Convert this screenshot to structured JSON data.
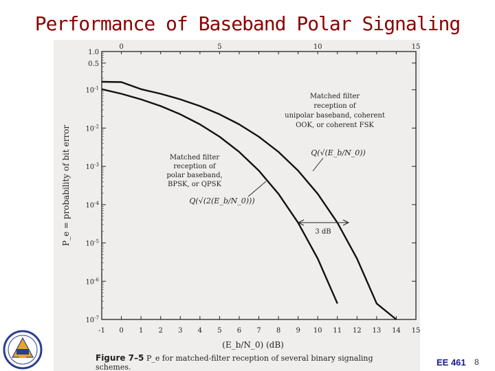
{
  "slide": {
    "title": "Performance of Baseband Polar Signaling",
    "course": "EE 461",
    "page": "8"
  },
  "chart_data": {
    "type": "line",
    "xlabel": "(E_b/N_0) (dB)",
    "ylabel": "P_e = probability of bit error",
    "xlim": [
      -1,
      15
    ],
    "ylog": true,
    "ylim": [
      1e-07,
      1.0
    ],
    "x_ticks": [
      -1,
      0,
      1,
      2,
      3,
      4,
      5,
      6,
      7,
      8,
      9,
      10,
      11,
      12,
      13,
      14,
      15
    ],
    "x_tick_labels": [
      "-1",
      "0",
      "1",
      "2",
      "3",
      "4",
      "5",
      "6",
      "7",
      "8",
      "9",
      "10",
      "11",
      "12",
      "13",
      "14",
      "15"
    ],
    "top_ticks": [
      0,
      5,
      10,
      15
    ],
    "top_tick_labels": [
      "0",
      "5",
      "10",
      "15"
    ],
    "y_ticks": [
      1.0,
      0.5,
      0.1,
      0.01,
      0.001,
      0.0001,
      1e-05,
      1e-06,
      1e-07
    ],
    "y_tick_labels": [
      "1.0",
      "0.5",
      "10-1",
      "10-2",
      "10-3",
      "10-4",
      "10-5",
      "10-6",
      "10-7"
    ],
    "grid": false,
    "series": [
      {
        "name": "polar",
        "x": [
          -1,
          0,
          1,
          2,
          3,
          4,
          5,
          6,
          7,
          8,
          9,
          10,
          11
        ],
        "y": [
          0.104,
          0.0786,
          0.0563,
          0.0375,
          0.0229,
          0.0125,
          0.00595,
          0.00239,
          0.000773,
          0.000191,
          3.36e-05,
          3.87e-06,
          2.61e-07
        ]
      },
      {
        "name": "unipolar",
        "x": [
          -1,
          0,
          1,
          2,
          3,
          4,
          5,
          6,
          7,
          8,
          9,
          10,
          11,
          12,
          13,
          14
        ],
        "y": [
          0.1623,
          0.1587,
          0.104,
          0.0786,
          0.0563,
          0.0375,
          0.0229,
          0.0125,
          0.00595,
          0.00239,
          0.000773,
          0.000191,
          3.36e-05,
          3.87e-06,
          2.61e-07,
          1.14e-08
        ]
      }
    ],
    "annotations": {
      "unipolar_note": [
        "Matched filter",
        "reception of",
        "unipolar baseband, coherent",
        "OOK, or coherent FSK"
      ],
      "unipolar_formula": "Q(√(E_b/N_0))",
      "polar_note": [
        "Matched filter",
        "reception of",
        "polar baseband,",
        "BPSK, or QPSK"
      ],
      "polar_formula": "Q(√(2(E_b/N_0)))",
      "gap": "3 dB"
    },
    "caption_label": "Figure 7–5",
    "caption_text": "P_e for matched-filter reception of several binary signaling",
    "caption_text2": "schemes."
  }
}
